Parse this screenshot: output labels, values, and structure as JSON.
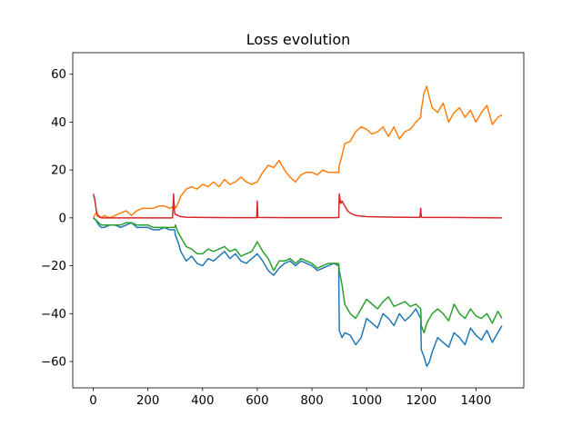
{
  "chart_data": {
    "type": "line",
    "title": "Loss evolution",
    "xlabel": "",
    "ylabel": "",
    "xlim": [
      -75,
      1575
    ],
    "ylim": [
      -71,
      69
    ],
    "x_ticks": [
      0,
      200,
      400,
      600,
      800,
      1000,
      1200,
      1400
    ],
    "y_ticks": [
      -60,
      -40,
      -20,
      0,
      20,
      40,
      60
    ],
    "grid": false,
    "legend": "none",
    "series": [
      {
        "color": "#1f77b4",
        "x": [
          0,
          10,
          20,
          30,
          40,
          60,
          80,
          100,
          120,
          140,
          160,
          180,
          200,
          220,
          240,
          260,
          280,
          298,
          300,
          310,
          320,
          340,
          360,
          380,
          400,
          420,
          440,
          460,
          480,
          500,
          520,
          540,
          560,
          580,
          600,
          620,
          640,
          660,
          680,
          700,
          720,
          740,
          760,
          780,
          800,
          820,
          840,
          860,
          880,
          898,
          900,
          910,
          920,
          940,
          960,
          980,
          1000,
          1020,
          1040,
          1060,
          1080,
          1100,
          1120,
          1140,
          1160,
          1180,
          1198,
          1200,
          1210,
          1220,
          1230,
          1240,
          1260,
          1280,
          1300,
          1320,
          1340,
          1360,
          1380,
          1400,
          1420,
          1440,
          1460,
          1480,
          1495
        ],
        "y": [
          0,
          -1,
          -3,
          -4,
          -4,
          -3,
          -3,
          -4,
          -3,
          -2,
          -4,
          -4,
          -4,
          -5,
          -5,
          -4,
          -5,
          -5,
          -7,
          -10,
          -14,
          -18,
          -16,
          -19,
          -20,
          -17,
          -18,
          -16,
          -14,
          -17,
          -15,
          -18,
          -19,
          -17,
          -15,
          -18,
          -22,
          -24,
          -21,
          -19,
          -18,
          -20,
          -18,
          -19,
          -20,
          -22,
          -21,
          -20,
          -19,
          -20,
          -47,
          -50,
          -48,
          -49,
          -53,
          -50,
          -42,
          -44,
          -46,
          -40,
          -42,
          -45,
          -40,
          -43,
          -41,
          -38,
          -42,
          -55,
          -58,
          -62,
          -60,
          -56,
          -50,
          -52,
          -54,
          -48,
          -50,
          -53,
          -46,
          -49,
          -51,
          -47,
          -52,
          -48,
          -45
        ]
      },
      {
        "color": "#ff7f0e",
        "x": [
          0,
          10,
          20,
          30,
          40,
          60,
          80,
          100,
          120,
          140,
          160,
          180,
          200,
          220,
          240,
          260,
          280,
          298,
          300,
          310,
          320,
          340,
          360,
          380,
          400,
          420,
          440,
          460,
          480,
          500,
          520,
          540,
          560,
          580,
          600,
          620,
          640,
          660,
          680,
          700,
          720,
          740,
          760,
          780,
          800,
          820,
          840,
          860,
          880,
          898,
          900,
          910,
          920,
          940,
          960,
          980,
          1000,
          1020,
          1040,
          1060,
          1080,
          1100,
          1120,
          1140,
          1160,
          1180,
          1198,
          1200,
          1210,
          1220,
          1230,
          1240,
          1260,
          1280,
          1300,
          1320,
          1340,
          1360,
          1380,
          1400,
          1420,
          1440,
          1460,
          1480,
          1495
        ],
        "y": [
          0,
          2,
          1,
          0,
          1,
          0,
          1,
          2,
          3,
          1,
          3,
          4,
          4,
          4,
          5,
          5,
          4,
          5,
          4,
          6,
          9,
          12,
          13,
          12,
          14,
          13,
          15,
          13,
          16,
          14,
          15,
          17,
          15,
          14,
          15,
          19,
          22,
          21,
          24,
          20,
          17,
          15,
          18,
          19,
          19,
          18,
          20,
          19,
          19,
          19,
          22,
          26,
          31,
          32,
          36,
          38,
          37,
          35,
          36,
          38,
          34,
          38,
          33,
          36,
          37,
          40,
          42,
          45,
          52,
          55,
          50,
          46,
          44,
          48,
          40,
          44,
          46,
          42,
          45,
          40,
          44,
          47,
          39,
          42,
          43
        ]
      },
      {
        "color": "#2ca02c",
        "x": [
          0,
          10,
          20,
          30,
          40,
          60,
          80,
          100,
          120,
          140,
          160,
          180,
          200,
          220,
          240,
          260,
          280,
          298,
          300,
          310,
          320,
          340,
          360,
          380,
          400,
          420,
          440,
          460,
          480,
          500,
          520,
          540,
          560,
          580,
          600,
          620,
          640,
          660,
          680,
          700,
          720,
          740,
          760,
          780,
          800,
          820,
          840,
          860,
          880,
          898,
          900,
          910,
          920,
          940,
          960,
          980,
          1000,
          1020,
          1040,
          1060,
          1080,
          1100,
          1120,
          1140,
          1160,
          1180,
          1198,
          1200,
          1210,
          1220,
          1230,
          1240,
          1260,
          1280,
          1300,
          1320,
          1340,
          1360,
          1380,
          1400,
          1420,
          1440,
          1460,
          1480,
          1495
        ],
        "y": [
          0,
          -1,
          -2,
          -3,
          -3,
          -3,
          -3,
          -3,
          -2,
          -2,
          -3,
          -3,
          -3,
          -4,
          -4,
          -4,
          -4,
          -4,
          -3,
          -6,
          -8,
          -12,
          -13,
          -15,
          -15,
          -13,
          -14,
          -13,
          -12,
          -14,
          -13,
          -16,
          -15,
          -14,
          -10,
          -14,
          -17,
          -22,
          -18,
          -18,
          -17,
          -19,
          -17,
          -18,
          -19,
          -21,
          -20,
          -19,
          -19,
          -19,
          -22,
          -28,
          -36,
          -40,
          -42,
          -38,
          -34,
          -36,
          -38,
          -35,
          -33,
          -37,
          -36,
          -35,
          -37,
          -36,
          -38,
          -45,
          -48,
          -44,
          -42,
          -40,
          -38,
          -40,
          -43,
          -36,
          -40,
          -42,
          -38,
          -41,
          -42,
          -40,
          -44,
          -39,
          -42
        ]
      },
      {
        "color": "#d62728",
        "x": [
          0,
          5,
          10,
          15,
          20,
          30,
          50,
          100,
          150,
          200,
          250,
          290,
          294,
          296,
          298,
          300,
          310,
          320,
          340,
          400,
          500,
          598,
          600,
          602,
          700,
          800,
          890,
          898,
          900,
          905,
          910,
          920,
          930,
          940,
          960,
          1000,
          1100,
          1195,
          1198,
          1200,
          1202,
          1300,
          1400,
          1495
        ],
        "y": [
          10,
          8,
          4,
          1,
          0.5,
          0,
          0,
          0,
          0,
          0,
          0,
          0,
          10,
          4,
          2,
          1.5,
          1,
          0.5,
          0.3,
          0.2,
          0.1,
          0.1,
          7,
          0.2,
          0.1,
          0.1,
          0.1,
          0.2,
          10,
          6,
          7,
          5,
          3,
          2,
          1,
          0.5,
          0.3,
          0.2,
          4,
          0.5,
          0.2,
          0.2,
          0.1,
          0
        ]
      }
    ]
  }
}
